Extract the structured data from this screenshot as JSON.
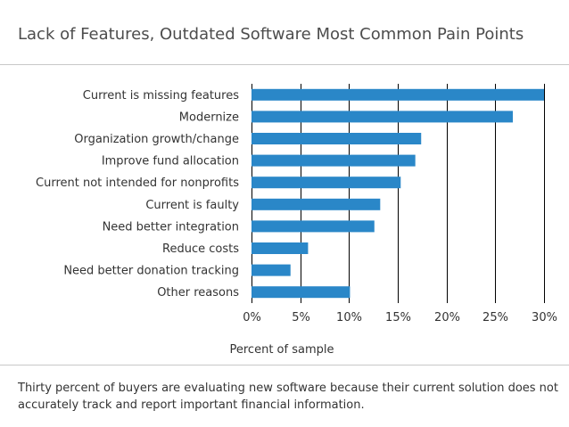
{
  "title": "Lack of Features, Outdated Software Most Common Pain Points",
  "caption": "Thirty percent of buyers are evaluating new software because their current solution does not accurately track and report important financial information.",
  "colors": {
    "bar": "#2a87c8",
    "grid": "#000000",
    "text": "#333333"
  },
  "chart_data": {
    "type": "bar",
    "orientation": "horizontal",
    "categories": [
      "Current is missing features",
      "Modernize",
      "Organization growth/change",
      "Improve fund allocation",
      "Current not intended for nonprofits",
      "Current is faulty",
      "Need better integration",
      "Reduce costs",
      "Need better donation tracking",
      "Other reasons"
    ],
    "values": [
      30,
      26.8,
      17.4,
      16.8,
      15.3,
      13.2,
      12.6,
      5.8,
      4.0,
      10.1
    ],
    "xlabel": "Percent of sample",
    "ylabel": "",
    "xlim": [
      0,
      30
    ],
    "xticks": [
      "0%",
      "5%",
      "10%",
      "15%",
      "20%",
      "25%",
      "30%"
    ],
    "grid": true,
    "legend": "none"
  }
}
